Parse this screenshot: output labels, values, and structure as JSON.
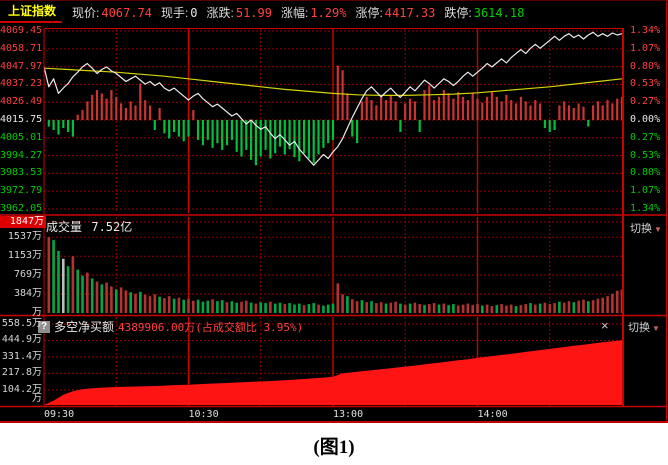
{
  "header": {
    "index_name": "上证指数",
    "fields": [
      {
        "label": "现价:",
        "value": "4067.74",
        "color": "up"
      },
      {
        "label": "现手:",
        "value": "0",
        "color": "flat"
      },
      {
        "label": "涨跌:",
        "value": "51.99",
        "color": "up"
      },
      {
        "label": "涨幅:",
        "value": "1.29%",
        "color": "up"
      },
      {
        "label": "涨停:",
        "value": "4417.33",
        "color": "up"
      },
      {
        "label": "跌停:",
        "value": "3614.18",
        "color": "down"
      }
    ]
  },
  "volume_panel": {
    "title": "成交量",
    "amount": "7.52亿"
  },
  "net_panel": {
    "help_icon": "?",
    "title": "多空净买额",
    "value_text": "4389906.00万(占成交额比 3.95%)"
  },
  "buttons": {
    "switch_label": "切换",
    "dropdown_arrow": "▼",
    "close_label": "×"
  },
  "caption": "(图1)",
  "colors": {
    "up": "#ff4040",
    "down": "#00cc00",
    "flat": "#e8e8e8",
    "accent_yellow": "#ffff00",
    "grid_red": "#980000",
    "border_red": "#cc0000",
    "panel_bg": "#000000",
    "area_red": "#ff1414",
    "volume_up": "#b43232",
    "volume_down": "#00a846",
    "volume_neutral": "#bbbbbb",
    "avg_line": "#d4d400",
    "price_line": "#ececec",
    "hist_up": "#cc3333",
    "hist_down": "#00c040"
  },
  "chart_data": {
    "type": "intraday-stock",
    "prev_close": 4015.75,
    "close": 4067.74,
    "pct_range": 1.34,
    "price_axis_left": {
      "labels": [
        "4069.45",
        "4058.71",
        "4047.97",
        "4037.23",
        "4026.49",
        "4015.75",
        "4005.01",
        "3994.27",
        "3983.53",
        "3972.79",
        "3962.05"
      ],
      "tones": [
        "up",
        "up",
        "up",
        "up",
        "up",
        "flat",
        "down",
        "down",
        "down",
        "down",
        "down"
      ]
    },
    "pct_axis_right": {
      "labels": [
        "1.34%",
        "1.07%",
        "0.80%",
        "0.53%",
        "0.27%",
        "0.00%",
        "0.27%",
        "0.53%",
        "0.80%",
        "1.07%",
        "1.34%"
      ],
      "tones": [
        "up",
        "up",
        "up",
        "up",
        "up",
        "flat",
        "down",
        "down",
        "down",
        "down",
        "down"
      ]
    },
    "volume_axis": {
      "labels": [
        "1847万",
        "1537万",
        "1153万",
        "769万",
        "384万",
        "万"
      ],
      "values": [
        1847,
        1537,
        1153,
        769,
        384,
        0
      ],
      "max": 1847
    },
    "net_axis": {
      "labels": [
        "558.5万",
        "444.9万",
        "331.4万",
        "217.8万",
        "104.2万",
        "万"
      ],
      "values": [
        558.5,
        444.9,
        331.4,
        217.8,
        104.2,
        0
      ],
      "max": 558.5
    },
    "time_axis": {
      "labels": [
        "09:30",
        "10:30",
        "13:00",
        "14:00"
      ],
      "minutes": [
        0,
        60,
        120,
        180
      ],
      "session_minutes": 240,
      "solid_grid_minutes": [
        60,
        120,
        180
      ],
      "dotted_grid_minutes": [
        30,
        90,
        150,
        210
      ]
    },
    "series": [
      {
        "name": "price",
        "type": "line",
        "x_step_min": 2,
        "pct": [
          0.8,
          0.5,
          0.62,
          0.4,
          0.48,
          0.55,
          0.65,
          0.72,
          0.8,
          0.85,
          0.78,
          0.7,
          0.76,
          0.8,
          0.74,
          0.7,
          0.64,
          0.58,
          0.62,
          0.66,
          0.6,
          0.54,
          0.58,
          0.52,
          0.56,
          0.48,
          0.44,
          0.48,
          0.42,
          0.36,
          0.3,
          0.36,
          0.4,
          0.32,
          0.26,
          0.2,
          0.24,
          0.18,
          0.12,
          0.06,
          0.1,
          0.02,
          -0.06,
          0.0,
          -0.08,
          -0.14,
          -0.1,
          -0.2,
          -0.28,
          -0.22,
          -0.3,
          -0.38,
          -0.32,
          -0.44,
          -0.52,
          -0.6,
          -0.68,
          -0.6,
          -0.52,
          -0.58,
          -0.48,
          -0.4,
          -0.28,
          -0.12,
          0.04,
          0.18,
          0.32,
          0.44,
          0.5,
          0.42,
          0.35,
          0.42,
          0.48,
          0.4,
          0.34,
          0.42,
          0.5,
          0.44,
          0.52,
          0.6,
          0.55,
          0.48,
          0.55,
          0.62,
          0.58,
          0.52,
          0.58,
          0.66,
          0.72,
          0.66,
          0.72,
          0.78,
          0.85,
          0.8,
          0.86,
          0.92,
          0.86,
          0.94,
          1.0,
          1.06,
          1.0,
          1.08,
          1.14,
          1.08,
          1.14,
          1.2,
          1.26,
          1.2,
          1.26,
          1.3,
          1.24,
          1.28,
          1.22,
          1.28,
          1.32,
          1.26,
          1.3,
          1.26,
          1.31,
          1.28,
          1.3
        ]
      },
      {
        "name": "average",
        "type": "line",
        "x_step_min": 10,
        "pct": [
          0.78,
          0.76,
          0.74,
          0.72,
          0.69,
          0.66,
          0.62,
          0.58,
          0.54,
          0.5,
          0.46,
          0.43,
          0.4,
          0.38,
          0.37,
          0.37,
          0.38,
          0.39,
          0.41,
          0.44,
          0.47,
          0.5,
          0.54,
          0.58,
          0.62
        ]
      },
      {
        "name": "minute_net",
        "type": "bar",
        "x_step_min": 2,
        "pct": [
          -0.1,
          -0.15,
          -0.22,
          -0.12,
          -0.18,
          -0.25,
          0.08,
          0.15,
          0.28,
          0.38,
          0.45,
          0.4,
          0.32,
          0.45,
          0.35,
          0.25,
          0.18,
          0.28,
          0.22,
          0.55,
          0.3,
          0.22,
          -0.15,
          0.18,
          -0.2,
          -0.28,
          -0.18,
          -0.25,
          -0.32,
          -0.25,
          0.15,
          -0.3,
          -0.38,
          -0.3,
          -0.42,
          -0.35,
          -0.45,
          -0.38,
          -0.3,
          -0.48,
          -0.55,
          -0.45,
          -0.6,
          -0.68,
          -0.55,
          -0.45,
          -0.58,
          -0.5,
          -0.4,
          -0.52,
          -0.44,
          -0.56,
          -0.62,
          -0.5,
          -0.58,
          -0.65,
          -0.52,
          -0.42,
          -0.35,
          -0.3,
          0.82,
          0.75,
          0.4,
          -0.25,
          -0.35,
          0.28,
          0.35,
          0.3,
          0.22,
          0.35,
          0.3,
          0.38,
          0.28,
          -0.18,
          0.25,
          0.32,
          0.28,
          -0.18,
          0.45,
          0.52,
          0.3,
          0.35,
          0.45,
          0.4,
          0.32,
          0.42,
          0.35,
          0.3,
          0.4,
          0.32,
          0.26,
          0.35,
          0.42,
          0.35,
          0.28,
          0.38,
          0.3,
          0.25,
          0.35,
          0.28,
          0.22,
          0.3,
          0.25,
          -0.12,
          -0.18,
          -0.15,
          0.22,
          0.28,
          0.22,
          0.18,
          0.25,
          0.2,
          -0.1,
          0.22,
          0.28,
          0.22,
          0.3,
          0.25,
          0.32,
          0.35
        ]
      },
      {
        "name": "volume",
        "type": "bar",
        "unit": "万",
        "x_step_min": 2,
        "values": [
          1537,
          1480,
          1260,
          1100,
          950,
          1150,
          880,
          760,
          820,
          700,
          640,
          580,
          620,
          540,
          480,
          520,
          460,
          420,
          390,
          430,
          370,
          340,
          380,
          330,
          300,
          340,
          290,
          310,
          270,
          290,
          250,
          270,
          230,
          250,
          280,
          240,
          260,
          220,
          240,
          210,
          230,
          250,
          210,
          190,
          220,
          200,
          230,
          190,
          210,
          180,
          200,
          170,
          190,
          160,
          180,
          200,
          170,
          150,
          170,
          190,
          600,
          380,
          340,
          280,
          240,
          260,
          220,
          240,
          200,
          220,
          190,
          210,
          230,
          190,
          170,
          190,
          210,
          180,
          160,
          180,
          200,
          170,
          190,
          160,
          180,
          150,
          170,
          190,
          160,
          180,
          150,
          170,
          140,
          160,
          180,
          150,
          170,
          140,
          160,
          180,
          200,
          170,
          190,
          210,
          180,
          200,
          230,
          210,
          240,
          220,
          250,
          270,
          240,
          260,
          290,
          310,
          340,
          390,
          450,
          480
        ],
        "bar_colors": "rggwgrggrgrgrrgrrgrgrrrgrrgrgrrgggrggrggrrgrggrggrgggrggrgggrrgrrgrgrrgrrgrgrrgrrgrggrrrrrgrrgrrrgrrgrgrrrgrrgrrgrrrrr"
      },
      {
        "name": "net_buy",
        "type": "area",
        "unit": "万",
        "x_step_min": 4,
        "values": [
          0,
          30,
          70,
          95,
          108,
          115,
          120,
          122,
          125,
          127,
          128,
          130,
          132,
          135,
          138,
          140,
          143,
          146,
          149,
          152,
          155,
          158,
          161,
          164,
          167,
          171,
          175,
          179,
          184,
          189,
          195,
          218,
          226,
          233,
          240,
          247,
          254,
          261,
          268,
          276,
          284,
          292,
          300,
          308,
          316,
          325,
          333,
          341,
          349,
          357,
          366,
          374,
          383,
          391,
          399,
          408,
          416,
          424,
          432,
          440,
          446
        ]
      }
    ]
  }
}
